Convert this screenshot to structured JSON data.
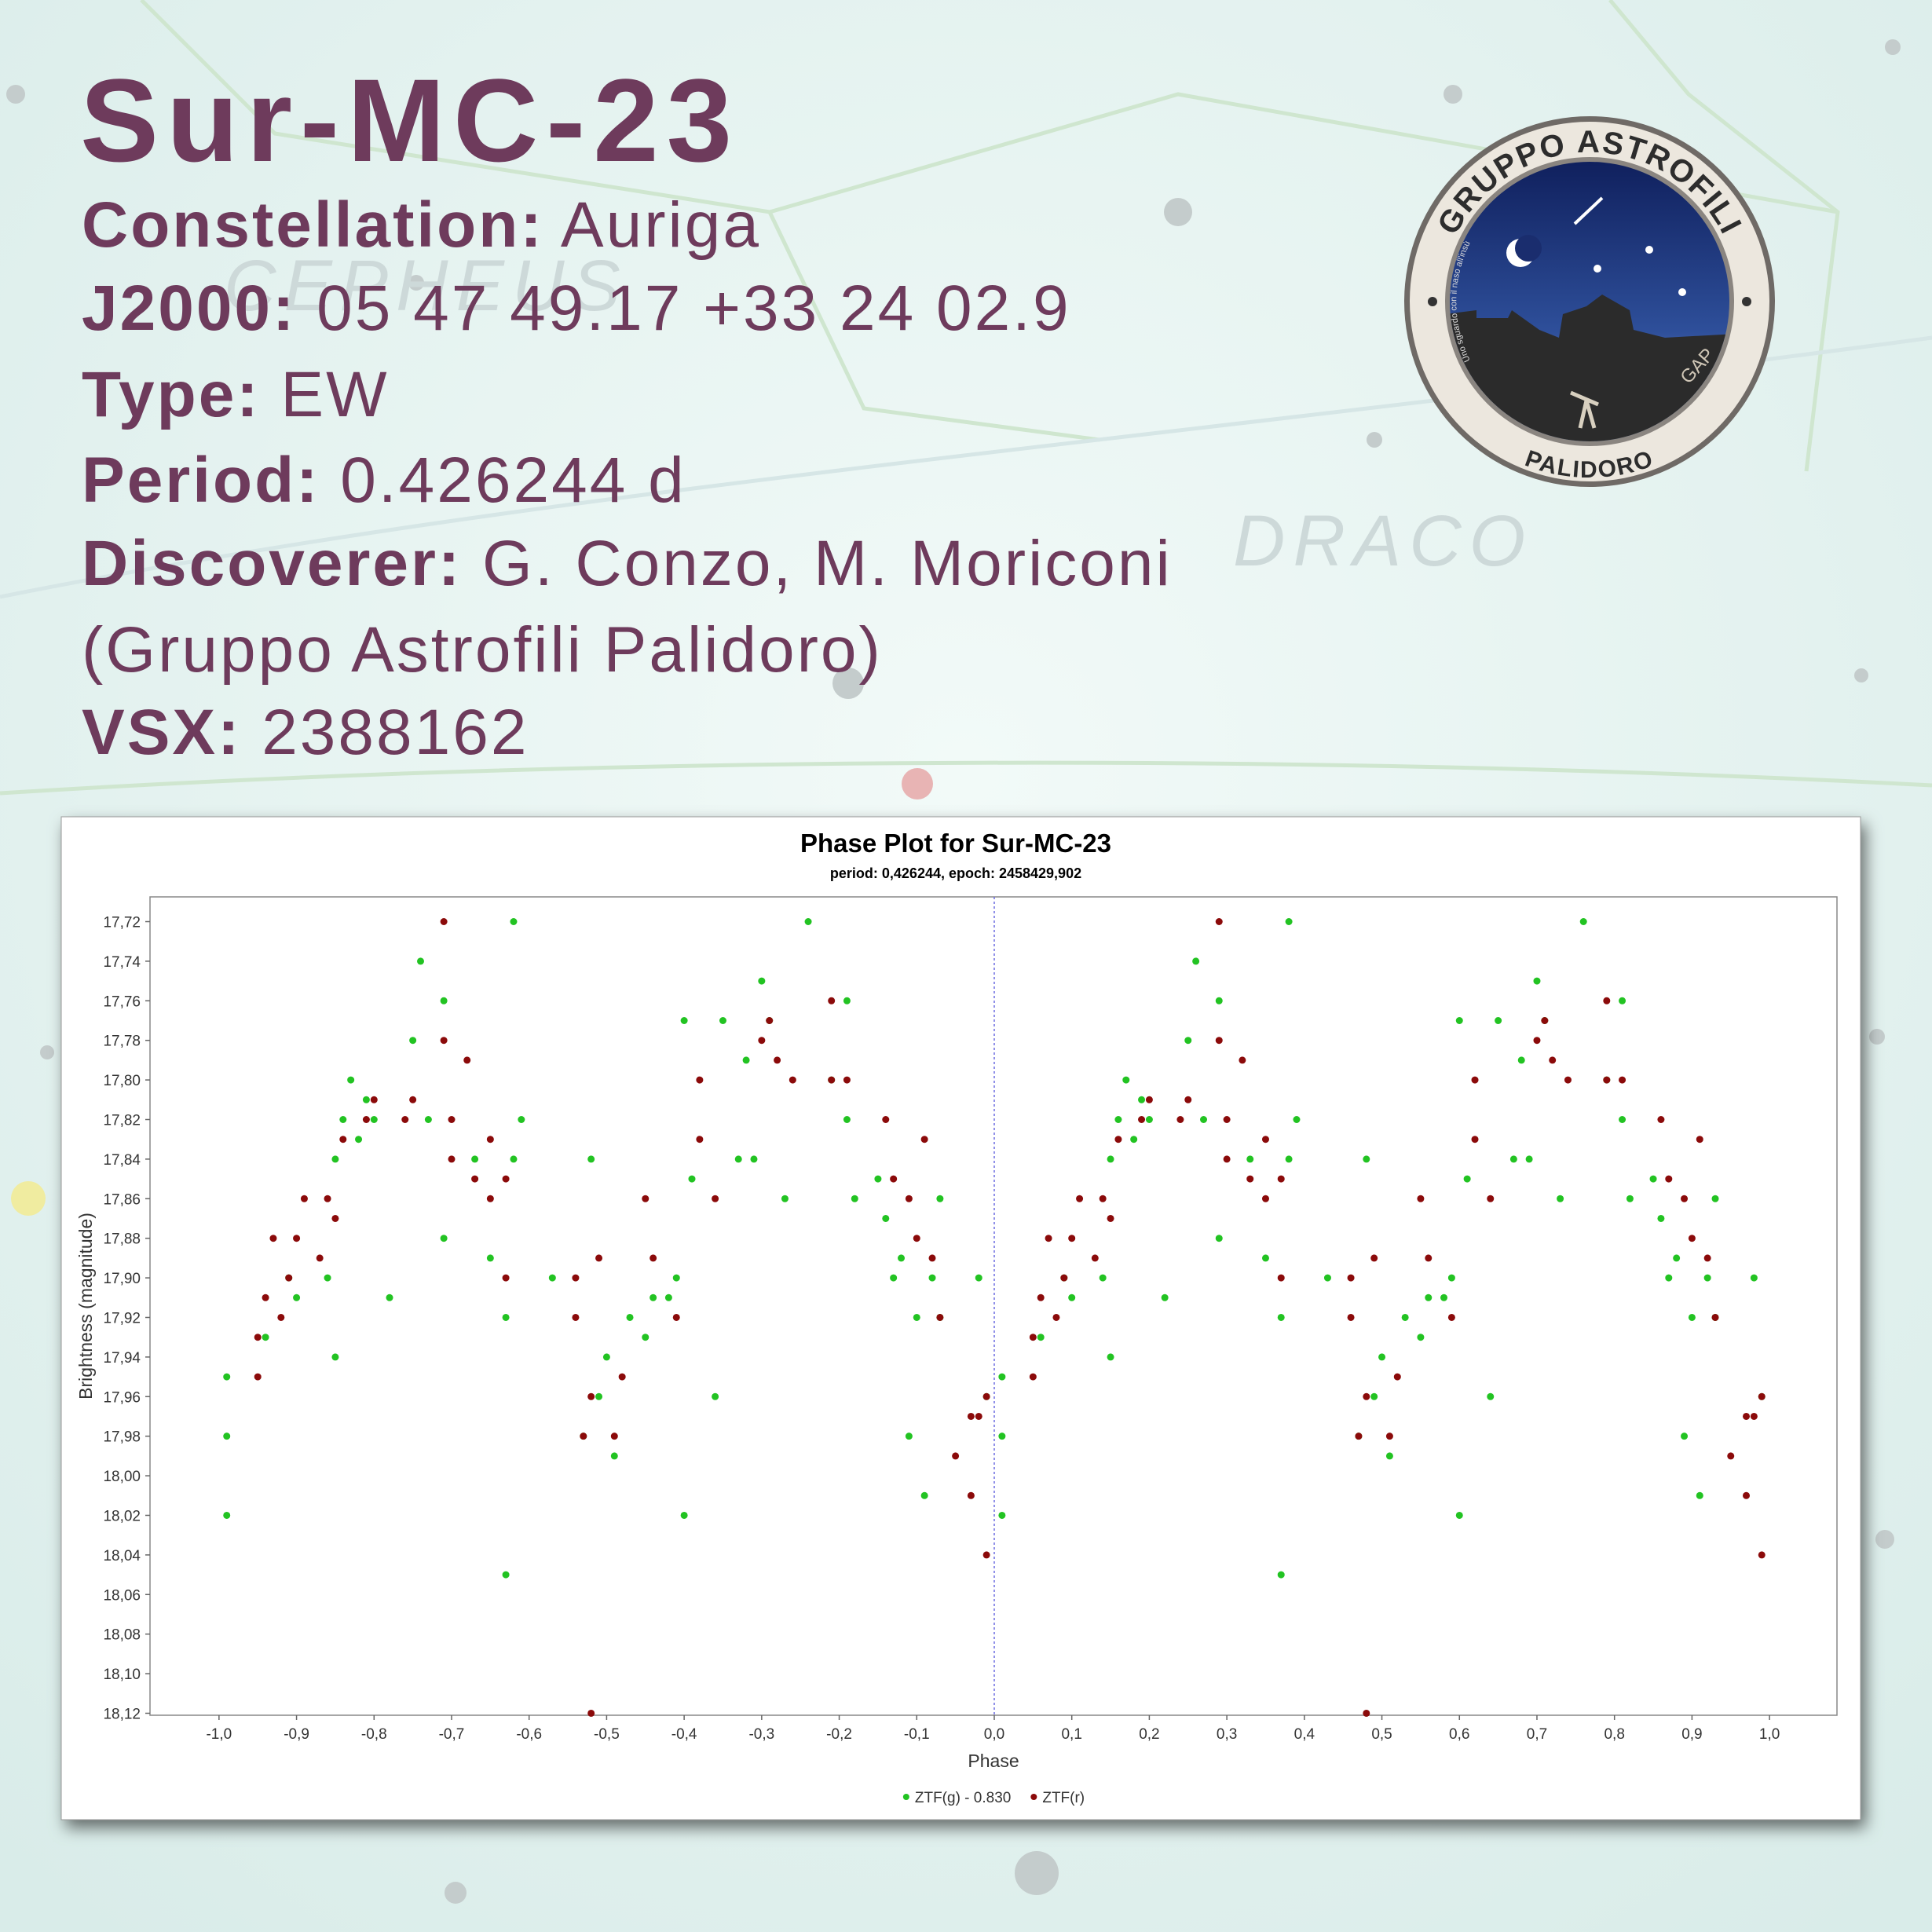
{
  "header": {
    "title": "Sur-MC-23",
    "lines": [
      {
        "label": "Constellation:",
        "value": "Auriga"
      },
      {
        "label": "J2000:",
        "value": "05 47 49.17 +33 24 02.9"
      },
      {
        "label": "Type:",
        "value": "EW"
      },
      {
        "label": "Period:",
        "value": "0.426244 d"
      },
      {
        "label": "Discoverer:",
        "value": "G. Conzo, M. Moriconi"
      },
      {
        "value": "(Gruppo Astrofili Palidoro)"
      },
      {
        "label": "VSX:",
        "value": "2388162"
      }
    ]
  },
  "background": {
    "labels": [
      "CEPHEUS",
      "DRACO"
    ]
  },
  "logo": {
    "top_text": "GRUPPO ASTROFILI",
    "bottom_text": "PALIDORO",
    "initials": "GAP",
    "motto": "Uno sguardo con il naso all'insù"
  },
  "chart_data": {
    "type": "scatter",
    "title": "Phase Plot for Sur-MC-23",
    "subtitle": "period: 0,426244, epoch: 2458429,902",
    "x_label": "Phase",
    "y_label": "Brightness (magnitude)",
    "xlim": [
      -1.089,
      1.087
    ],
    "ylim": [
      17.7075,
      18.121
    ],
    "y_inverted": true,
    "xticks": [
      {
        "value": -1,
        "label": "-1,0"
      },
      {
        "value": -0.9,
        "label": "-0,9"
      },
      {
        "value": -0.8,
        "label": "-0,8"
      },
      {
        "value": -0.7,
        "label": "-0,7"
      },
      {
        "value": -0.6,
        "label": "-0,6"
      },
      {
        "value": -0.5,
        "label": "-0,5"
      },
      {
        "value": -0.4,
        "label": "-0,4"
      },
      {
        "value": -0.3,
        "label": "-0,3"
      },
      {
        "value": -0.2,
        "label": "-0,2"
      },
      {
        "value": -0.1,
        "label": "-0,1"
      },
      {
        "value": 0,
        "label": "0,0"
      },
      {
        "value": 0.1,
        "label": "0,1"
      },
      {
        "value": 0.2,
        "label": "0,2"
      },
      {
        "value": 0.3,
        "label": "0,3"
      },
      {
        "value": 0.4,
        "label": "0,4"
      },
      {
        "value": 0.5,
        "label": "0,5"
      },
      {
        "value": 0.6,
        "label": "0,6"
      },
      {
        "value": 0.7,
        "label": "0,7"
      },
      {
        "value": 0.8,
        "label": "0,8"
      },
      {
        "value": 0.9,
        "label": "0,9"
      },
      {
        "value": 1,
        "label": "1,0"
      }
    ],
    "yticks": [
      {
        "value": 17.72,
        "label": "17,72"
      },
      {
        "value": 17.74,
        "label": "17,74"
      },
      {
        "value": 17.76,
        "label": "17,76"
      },
      {
        "value": 17.78,
        "label": "17,78"
      },
      {
        "value": 17.8,
        "label": "17,80"
      },
      {
        "value": 17.82,
        "label": "17,82"
      },
      {
        "value": 17.84,
        "label": "17,84"
      },
      {
        "value": 17.86,
        "label": "17,86"
      },
      {
        "value": 17.88,
        "label": "17,88"
      },
      {
        "value": 17.9,
        "label": "17,90"
      },
      {
        "value": 17.92,
        "label": "17,92"
      },
      {
        "value": 17.94,
        "label": "17,94"
      },
      {
        "value": 17.96,
        "label": "17,96"
      },
      {
        "value": 17.98,
        "label": "17,98"
      },
      {
        "value": 18,
        "label": "18,00"
      },
      {
        "value": 18.02,
        "label": "18,02"
      },
      {
        "value": 18.04,
        "label": "18,04"
      },
      {
        "value": 18.06,
        "label": "18,06"
      },
      {
        "value": 18.08,
        "label": "18,08"
      },
      {
        "value": 18.1,
        "label": "18,10"
      },
      {
        "value": 18.12,
        "label": "18,12"
      }
    ],
    "reference_line_x": 0,
    "legend": "bottom",
    "series": [
      {
        "name": "ZTF(g) - 0.830",
        "color": "#22c322",
        "x": [
          0.01,
          0.01,
          0.01,
          0.06,
          0.09,
          0.1,
          0.14,
          0.15,
          0.15,
          0.16,
          0.17,
          0.18,
          0.19,
          0.2,
          0.22,
          0.25,
          0.26,
          0.27,
          0.29,
          0.29,
          0.33,
          0.35,
          0.37,
          0.37,
          0.38,
          0.38,
          0.39,
          0.43,
          0.47,
          0.48,
          0.49,
          0.5,
          0.51,
          0.53,
          0.55,
          0.56,
          0.58,
          0.59,
          0.6,
          0.6,
          0.61,
          0.64,
          0.65,
          0.67,
          0.68,
          0.69,
          0.7,
          0.71,
          0.73,
          0.76,
          0.79,
          0.81,
          0.81,
          0.82,
          0.85,
          0.86,
          0.87,
          0.88,
          0.89,
          0.9,
          0.91,
          0.92,
          0.93,
          0.93,
          0.98,
          0.99,
          -0.99,
          -0.99,
          -0.99,
          -0.94,
          -0.91,
          -0.9,
          -0.86,
          -0.85,
          -0.85,
          -0.84,
          -0.83,
          -0.82,
          -0.81,
          -0.8,
          -0.78,
          -0.75,
          -0.74,
          -0.73,
          -0.71,
          -0.71,
          -0.67,
          -0.65,
          -0.63,
          -0.63,
          -0.62,
          -0.62,
          -0.61,
          -0.57,
          -0.53,
          -0.52,
          -0.51,
          -0.5,
          -0.49,
          -0.47,
          -0.45,
          -0.44,
          -0.42,
          -0.41,
          -0.4,
          -0.4,
          -0.39,
          -0.36,
          -0.35,
          -0.33,
          -0.32,
          -0.31,
          -0.3,
          -0.29,
          -0.27,
          -0.24,
          -0.21,
          -0.19,
          -0.19,
          -0.18,
          -0.15,
          -0.14,
          -0.13,
          -0.12,
          -0.11,
          -0.1,
          -0.09,
          -0.08,
          -0.07,
          -0.07,
          -0.02,
          -0.01
        ],
        "values": [
          17.95,
          17.98,
          18.02,
          17.93,
          17.9,
          17.91,
          17.9,
          17.94,
          17.84,
          17.82,
          17.8,
          17.83,
          17.81,
          17.82,
          17.91,
          17.78,
          17.74,
          17.82,
          17.76,
          17.88,
          17.84,
          17.89,
          17.92,
          18.05,
          17.84,
          17.72,
          17.82,
          17.9,
          17.98,
          17.84,
          17.96,
          17.94,
          17.99,
          17.92,
          17.93,
          17.91,
          17.91,
          17.9,
          17.77,
          18.02,
          17.85,
          17.96,
          17.77,
          17.84,
          17.79,
          17.84,
          17.75,
          17.77,
          17.86,
          17.72,
          17.8,
          17.76,
          17.82,
          17.86,
          17.85,
          17.87,
          17.9,
          17.89,
          17.98,
          17.92,
          18.01,
          17.9,
          17.92,
          17.86,
          17.9,
          17.96,
          17.95,
          17.98,
          18.02,
          17.93,
          17.9,
          17.91,
          17.9,
          17.94,
          17.84,
          17.82,
          17.8,
          17.83,
          17.81,
          17.82,
          17.91,
          17.78,
          17.74,
          17.82,
          17.76,
          17.88,
          17.84,
          17.89,
          17.92,
          18.05,
          17.84,
          17.72,
          17.82,
          17.9,
          17.98,
          17.84,
          17.96,
          17.94,
          17.99,
          17.92,
          17.93,
          17.91,
          17.91,
          17.9,
          17.77,
          18.02,
          17.85,
          17.96,
          17.77,
          17.84,
          17.79,
          17.84,
          17.75,
          17.77,
          17.86,
          17.72,
          17.8,
          17.76,
          17.82,
          17.86,
          17.85,
          17.87,
          17.9,
          17.89,
          17.98,
          17.92,
          18.01,
          17.9,
          17.92,
          17.86,
          17.9,
          17.96
        ]
      },
      {
        "name": "ZTF(r)",
        "color": "#8b0a0a",
        "x": [
          0.05,
          0.05,
          0.06,
          0.07,
          0.08,
          0.09,
          0.1,
          0.11,
          0.13,
          0.14,
          0.15,
          0.16,
          0.19,
          0.2,
          0.24,
          0.25,
          0.29,
          0.29,
          0.3,
          0.3,
          0.32,
          0.33,
          0.35,
          0.35,
          0.37,
          0.37,
          0.46,
          0.46,
          0.47,
          0.48,
          0.48,
          0.49,
          0.51,
          0.52,
          0.55,
          0.56,
          0.59,
          0.62,
          0.62,
          0.64,
          0.7,
          0.71,
          0.72,
          0.74,
          0.79,
          0.79,
          0.81,
          0.86,
          0.87,
          0.89,
          0.9,
          0.91,
          0.92,
          0.93,
          0.95,
          0.97,
          0.97,
          0.98,
          0.99,
          0.99,
          -0.95,
          -0.95,
          -0.94,
          -0.93,
          -0.92,
          -0.91,
          -0.9,
          -0.89,
          -0.87,
          -0.86,
          -0.85,
          -0.84,
          -0.81,
          -0.8,
          -0.76,
          -0.75,
          -0.71,
          -0.71,
          -0.7,
          -0.7,
          -0.68,
          -0.67,
          -0.65,
          -0.65,
          -0.63,
          -0.63,
          -0.54,
          -0.54,
          -0.53,
          -0.52,
          -0.52,
          -0.51,
          -0.49,
          -0.48,
          -0.45,
          -0.44,
          -0.41,
          -0.38,
          -0.38,
          -0.36,
          -0.3,
          -0.29,
          -0.28,
          -0.26,
          -0.21,
          -0.21,
          -0.19,
          -0.14,
          -0.13,
          -0.11,
          -0.1,
          -0.09,
          -0.08,
          -0.07,
          -0.05,
          -0.03,
          -0.03,
          -0.02,
          -0.01,
          -0.01
        ],
        "values": [
          17.93,
          17.95,
          17.91,
          17.88,
          17.92,
          17.9,
          17.88,
          17.86,
          17.89,
          17.86,
          17.87,
          17.83,
          17.82,
          17.81,
          17.82,
          17.81,
          17.72,
          17.78,
          17.84,
          17.82,
          17.79,
          17.85,
          17.83,
          17.86,
          17.85,
          17.9,
          17.9,
          17.92,
          17.98,
          18.12,
          17.96,
          17.89,
          17.98,
          17.95,
          17.86,
          17.89,
          17.92,
          17.8,
          17.83,
          17.86,
          17.78,
          17.77,
          17.79,
          17.8,
          17.76,
          17.8,
          17.8,
          17.82,
          17.85,
          17.86,
          17.88,
          17.83,
          17.89,
          17.92,
          17.99,
          18.01,
          17.97,
          17.97,
          18.04,
          17.96,
          17.93,
          17.95,
          17.91,
          17.88,
          17.92,
          17.9,
          17.88,
          17.86,
          17.89,
          17.86,
          17.87,
          17.83,
          17.82,
          17.81,
          17.82,
          17.81,
          17.72,
          17.78,
          17.84,
          17.82,
          17.79,
          17.85,
          17.83,
          17.86,
          17.85,
          17.9,
          17.9,
          17.92,
          17.98,
          18.12,
          17.96,
          17.89,
          17.98,
          17.95,
          17.86,
          17.89,
          17.92,
          17.8,
          17.83,
          17.86,
          17.78,
          17.77,
          17.79,
          17.8,
          17.76,
          17.8,
          17.8,
          17.82,
          17.85,
          17.86,
          17.88,
          17.83,
          17.89,
          17.92,
          17.99,
          18.01,
          17.97,
          17.97,
          18.04,
          17.96
        ]
      }
    ]
  }
}
